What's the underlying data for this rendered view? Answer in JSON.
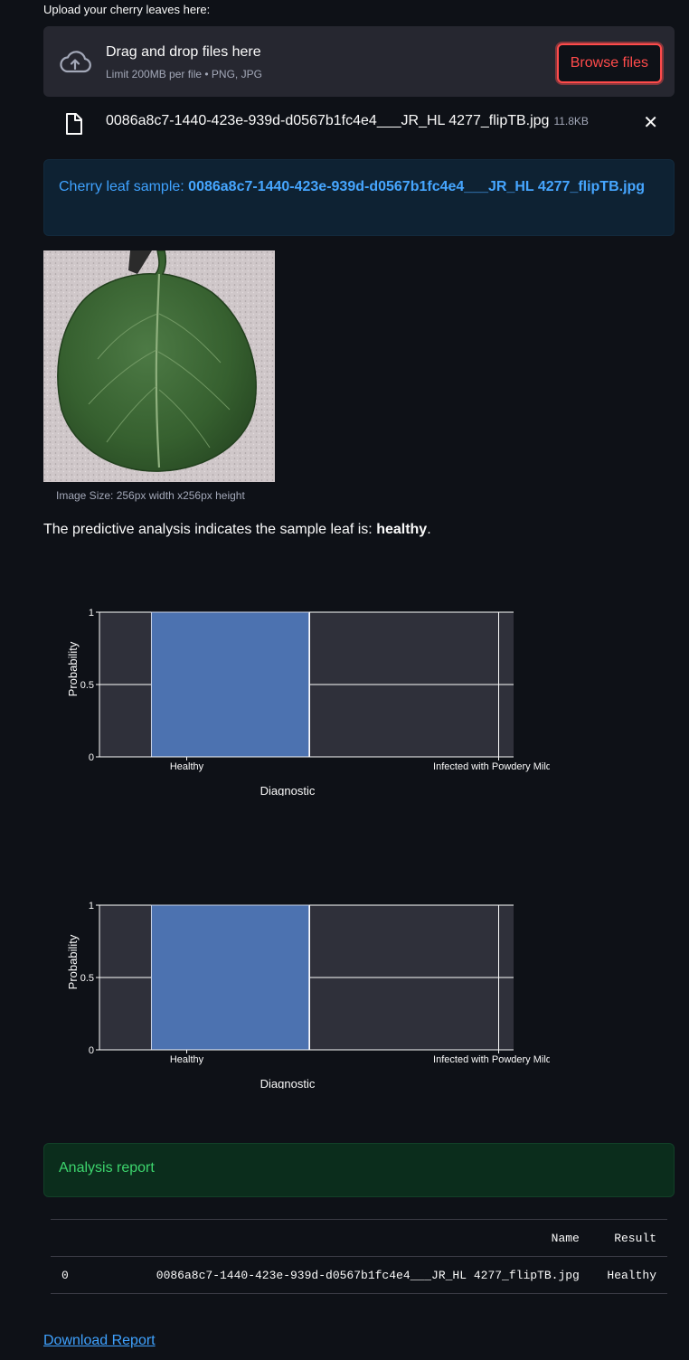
{
  "upload": {
    "label": "Upload your cherry leaves here:",
    "dropzone_title": "Drag and drop files here",
    "dropzone_subtitle": "Limit 200MB per file • PNG, JPG",
    "browse_label": "Browse files"
  },
  "file": {
    "name": "0086a8c7-1440-423e-939d-d0567b1fc4e4___JR_HL 4277_flipTB.jpg",
    "size": "11.8KB"
  },
  "info": {
    "prefix": "Cherry leaf sample: ",
    "filename": "0086a8c7-1440-423e-939d-d0567b1fc4e4___JR_HL 4277_flipTB.jpg"
  },
  "image": {
    "caption": "Image Size: 256px width x256px height"
  },
  "prediction": {
    "prefix": "The predictive analysis indicates the sample leaf is: ",
    "result": "healthy",
    "suffix": "."
  },
  "chart_data": [
    {
      "type": "bar",
      "categories": [
        "Healthy",
        "Infected with Powdery Mildew"
      ],
      "values": [
        1,
        0
      ],
      "xlabel": "Diagnostic",
      "ylabel": "Probability",
      "ylim": [
        0,
        1
      ],
      "yticks": [
        "0",
        "0.5",
        "1"
      ],
      "grid": true,
      "bar_color": "#4c72b0",
      "background": "#2f303a"
    },
    {
      "type": "bar",
      "categories": [
        "Healthy",
        "Infected with Powdery Mildew"
      ],
      "values": [
        1,
        0
      ],
      "xlabel": "Diagnostic",
      "ylabel": "Probability",
      "ylim": [
        0,
        1
      ],
      "yticks": [
        "0",
        "0.5",
        "1"
      ],
      "grid": true,
      "bar_color": "#4c72b0",
      "background": "#2f303a"
    }
  ],
  "report": {
    "title": "Analysis report",
    "columns": [
      "",
      "Name",
      "Result"
    ],
    "rows": [
      {
        "index": "0",
        "name": "0086a8c7-1440-423e-939d-d0567b1fc4e4___JR_HL 4277_flipTB.jpg",
        "result": "Healthy"
      }
    ],
    "download_label": "Download Report"
  },
  "colors": {
    "background": "#0e1117",
    "accent": "#ff4b4b",
    "info": "#3fa2ff",
    "success": "#3dd56d"
  }
}
